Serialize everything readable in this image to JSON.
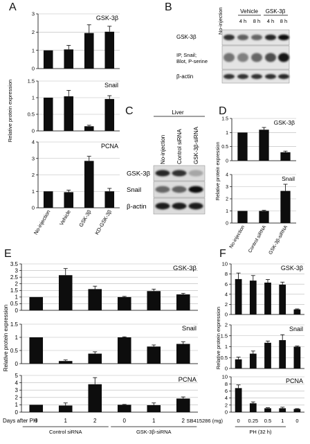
{
  "panels": {
    "A": "A",
    "B": "B",
    "C": "C",
    "D": "D",
    "E": "E",
    "F": "F"
  },
  "ylabel": "Relative protein expression",
  "chart_data": [
    {
      "id": "A",
      "type": "bar",
      "ylabel": "Relative protein expression",
      "categories": [
        "No-injection",
        "Vehicle",
        "GSK-3β",
        "KD-GSK-3β"
      ],
      "subplots": [
        {
          "title": "GSK-3β",
          "ylim": [
            0,
            3
          ],
          "yticks": [
            0,
            1,
            2,
            3
          ],
          "values": [
            1.0,
            1.05,
            1.95,
            2.02
          ],
          "errors": [
            0.0,
            0.22,
            0.45,
            0.3
          ]
        },
        {
          "title": "Snail",
          "ylim": [
            0,
            1.5
          ],
          "yticks": [
            0,
            0.5,
            1,
            1.5
          ],
          "values": [
            1.0,
            1.04,
            0.14,
            0.96
          ],
          "errors": [
            0.0,
            0.18,
            0.03,
            0.1
          ]
        },
        {
          "title": "PCNA",
          "ylim": [
            0,
            4
          ],
          "yticks": [
            0,
            1,
            2,
            3,
            4
          ],
          "values": [
            1.0,
            0.95,
            2.85,
            1.0
          ],
          "errors": [
            0.0,
            0.12,
            0.28,
            0.18
          ]
        }
      ]
    },
    {
      "id": "D",
      "type": "bar",
      "ylabel": "Relative protein expression",
      "categories": [
        "No-injection",
        "Control siRNA",
        "GSK-3β-siRNA"
      ],
      "subplots": [
        {
          "title": "GSK-3β",
          "ylim": [
            0,
            1.5
          ],
          "yticks": [
            0,
            0.5,
            1,
            1.5
          ],
          "values": [
            1.0,
            1.1,
            0.3
          ],
          "errors": [
            0.0,
            0.08,
            0.04
          ]
        },
        {
          "title": "Snail",
          "ylim": [
            0,
            4
          ],
          "yticks": [
            0,
            1,
            2,
            3,
            4
          ],
          "values": [
            1.0,
            1.0,
            2.65
          ],
          "errors": [
            0.0,
            0.05,
            0.55
          ]
        }
      ]
    },
    {
      "id": "E",
      "type": "bar",
      "ylabel": "Relative protein expression",
      "xlabel": "Days after PH",
      "categories": [
        "0",
        "1",
        "2",
        "0",
        "1",
        "2"
      ],
      "groups": [
        {
          "label": "Control siRNA",
          "indices": [
            0,
            1,
            2
          ]
        },
        {
          "label": "GSK-3β-siRNA",
          "indices": [
            3,
            4,
            5
          ]
        }
      ],
      "subplots": [
        {
          "title": "GSK-3β",
          "ylim": [
            0,
            3.5
          ],
          "yticks": [
            0,
            0.5,
            1,
            1.5,
            2,
            2.5,
            3,
            3.5
          ],
          "values": [
            1.0,
            2.65,
            1.6,
            1.0,
            1.45,
            1.2
          ],
          "errors": [
            0.0,
            0.5,
            0.22,
            0.05,
            0.15,
            0.08
          ]
        },
        {
          "title": "Snail",
          "ylim": [
            0,
            1.5
          ],
          "yticks": [
            0,
            0.5,
            1,
            1.5
          ],
          "values": [
            1.0,
            0.1,
            0.38,
            1.0,
            0.65,
            0.75
          ],
          "errors": [
            0.0,
            0.04,
            0.07,
            0.02,
            0.06,
            0.08
          ]
        },
        {
          "title": "PCNA",
          "ylim": [
            0,
            5
          ],
          "yticks": [
            0,
            1,
            2,
            3,
            4,
            5
          ],
          "values": [
            1.0,
            0.9,
            3.8,
            1.0,
            0.95,
            1.85
          ],
          "errors": [
            0.0,
            0.35,
            0.9,
            0.05,
            0.3,
            0.22
          ]
        }
      ]
    },
    {
      "id": "F",
      "type": "bar",
      "ylabel": "Relative protein expression",
      "xlabel": "SB415286 (mg)",
      "group_label": "PH (32 h)",
      "categories": [
        "0",
        "0.25",
        "0.5",
        "1",
        "0"
      ],
      "subplots": [
        {
          "title": "GSK-3β",
          "ylim": [
            0,
            10
          ],
          "yticks": [
            0,
            2,
            4,
            6,
            8,
            10
          ],
          "values": [
            7.0,
            6.7,
            6.3,
            5.9,
            1.0
          ],
          "errors": [
            1.2,
            1.0,
            0.6,
            0.5,
            0.1
          ]
        },
        {
          "title": "Snail",
          "ylim": [
            0,
            2
          ],
          "yticks": [
            0,
            0.5,
            1,
            1.5,
            2
          ],
          "values": [
            0.42,
            0.68,
            1.18,
            1.3,
            1.0
          ],
          "errors": [
            0.1,
            0.12,
            0.08,
            0.25,
            0.03
          ]
        },
        {
          "title": "PCNA",
          "ylim": [
            0,
            10
          ],
          "yticks": [
            0,
            2,
            4,
            6,
            8,
            10
          ],
          "values": [
            6.8,
            2.5,
            1.1,
            1.1,
            0.9
          ],
          "errors": [
            0.9,
            0.4,
            0.15,
            0.3,
            0.1
          ]
        }
      ]
    }
  ],
  "blot_B": {
    "header": [
      "No-injection",
      "Vehicle",
      "GSK-3β"
    ],
    "time_labels": [
      "4 h",
      "8 h",
      "4 h",
      "8 h"
    ],
    "rows": [
      "GSK-3β",
      "IP, Snail;\nBlot, P-serine",
      "β-actin"
    ]
  },
  "blot_C": {
    "group": "Liver",
    "lanes": [
      "No-injection",
      "Control siRNA",
      "GSK-3β-siRNA"
    ],
    "rows": [
      "GSK-3β",
      "Snail",
      "β-actin"
    ]
  }
}
